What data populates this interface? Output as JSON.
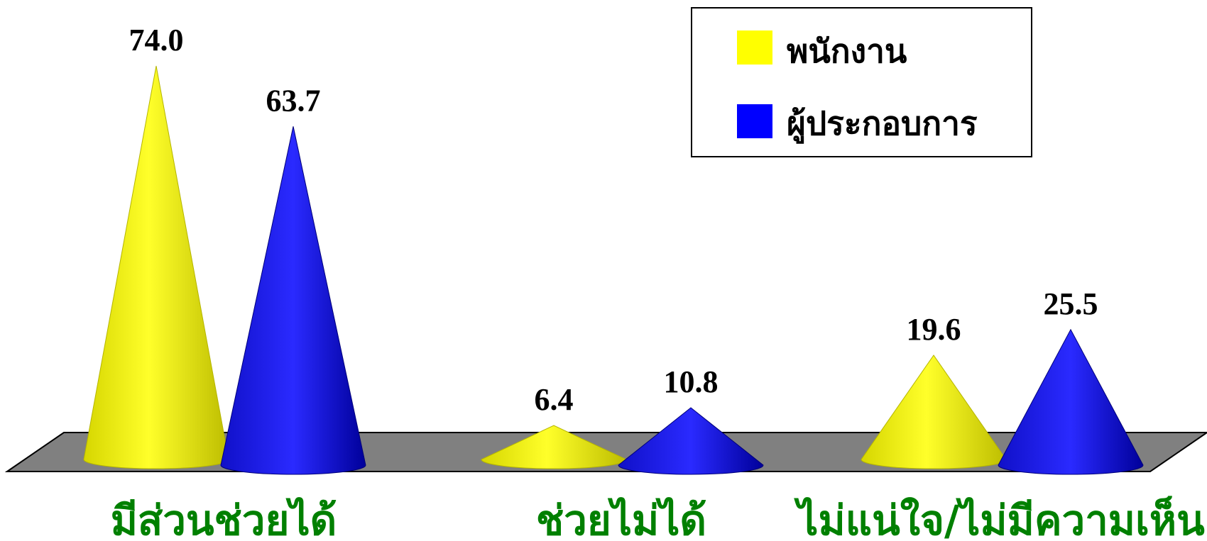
{
  "chart_data": {
    "type": "bar",
    "mark": "cone",
    "categories": [
      "มีส่วนช่วยได้",
      "ช่วยไม่ได้",
      "ไม่แน่ใจ/ไม่มีความเห็น"
    ],
    "series": [
      {
        "name": "พนักงาน",
        "color": "#FFFF00",
        "values": [
          74.0,
          6.4,
          19.6
        ]
      },
      {
        "name": "ผู้ประกอบการ",
        "color": "#0000FF",
        "values": [
          63.7,
          10.8,
          25.5
        ]
      }
    ],
    "value_labels": [
      [
        "74.0",
        "6.4",
        "19.6"
      ],
      [
        "63.7",
        "10.8",
        "25.5"
      ]
    ],
    "ylim": [
      0,
      80
    ],
    "grid": false,
    "legend_position": "top-right",
    "colors": {
      "floor": "#808080",
      "category_text": "#008000"
    }
  }
}
